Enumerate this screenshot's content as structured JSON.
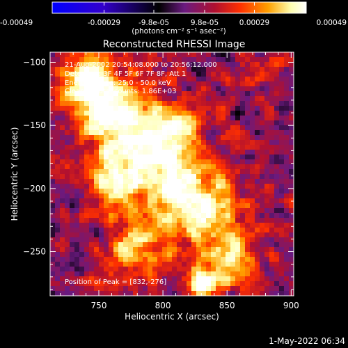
{
  "colorbar": {
    "tick_labels": [
      "-0.00049",
      "-0.00029",
      "-9.8e-05",
      "9.8e-05",
      "0.00029",
      "0.00049"
    ],
    "tick_values": [
      -0.00049,
      -0.00029,
      -9.8e-05,
      9.8e-05,
      0.00029,
      0.00049
    ],
    "range": [
      -0.00049,
      0.00049
    ],
    "unit_label": "(photons cm⁻² s⁻¹ asec⁻²)",
    "colors": [
      "#0000ff",
      "#3300cc",
      "#000000",
      "#6a1a80",
      "#b01030",
      "#ff3000",
      "#ffa000",
      "#ffffb0",
      "#ffffff"
    ]
  },
  "chart_data": {
    "type": "heatmap",
    "title": "Reconstructed RHESSI Image",
    "xlabel": "Heliocentric X (arcsec)",
    "ylabel": "Heliocentric Y (arcsec)",
    "xlim": [
      712,
      902
    ],
    "ylim": [
      -285,
      -92
    ],
    "x_ticks": [
      750,
      800,
      850,
      900
    ],
    "x_tick_labels": [
      "750",
      "800",
      "850",
      "900"
    ],
    "y_ticks": [
      -100,
      -150,
      -200,
      -250
    ],
    "y_tick_labels": [
      "−100",
      "−150",
      "−200",
      "−250"
    ],
    "annotations": [
      "21-Aug-2002 20:54:08.000 to 20:56:12.000",
      "Detectors: 3F 4F 5F 6F 7F 8F, Att 1",
      "Energy Range: 25.0 - 50.0 keV",
      "Clean     Total counts: 1.86E+03"
    ],
    "peak_label": "Position of Peak = [832,-276]",
    "peak_position": [
      832,
      -276
    ],
    "timestamp": "1-May-2022 06:34"
  }
}
